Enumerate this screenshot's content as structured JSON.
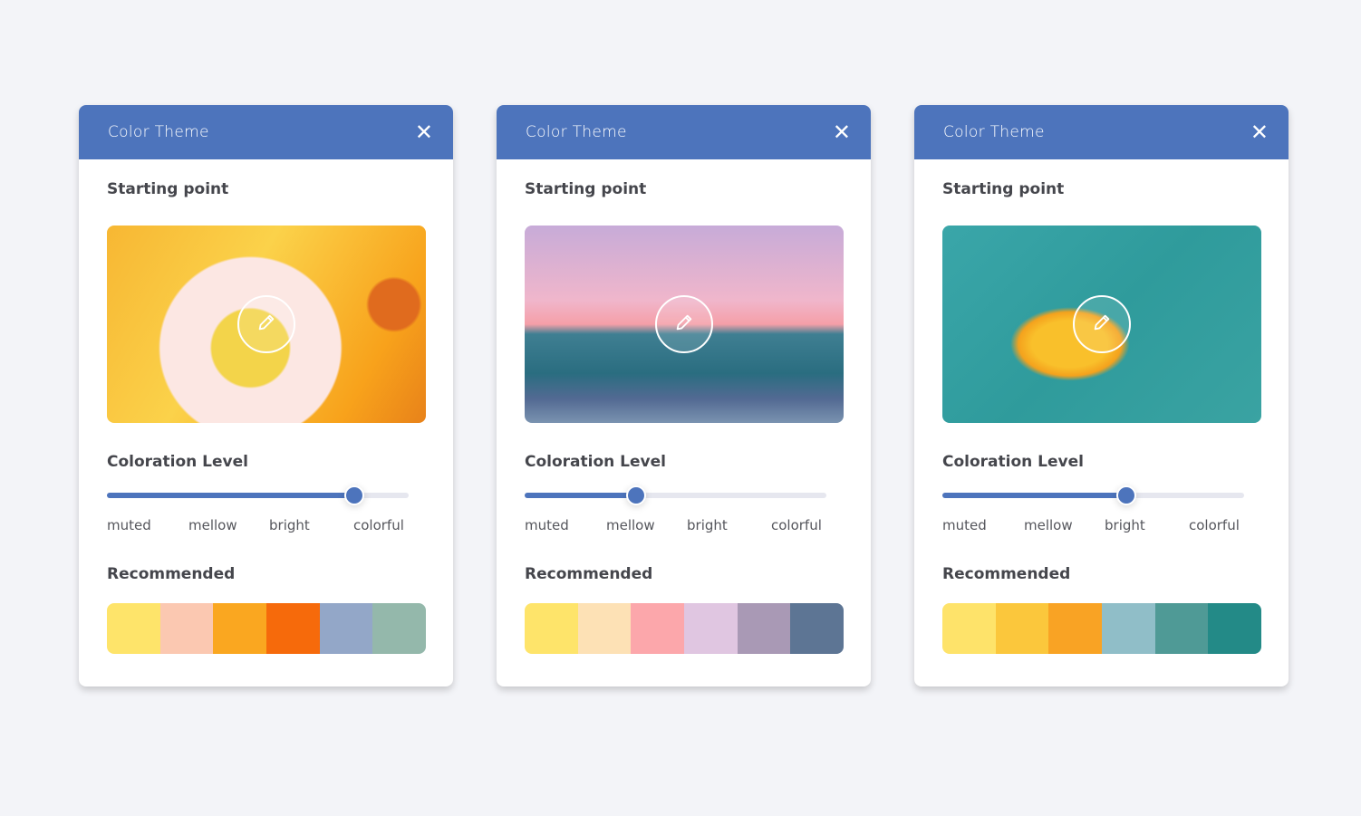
{
  "cards": [
    {
      "title": "Color Theme",
      "close_icon": "close-icon",
      "starting_label": "Starting point",
      "image": "donut-pool-float",
      "edit_icon": "pencil-icon",
      "coloration_label": "Coloration Level",
      "level_percent": 82,
      "levels": [
        "muted",
        "mellow",
        "bright",
        "colorful"
      ],
      "recommended_label": "Recommended",
      "palette": [
        "#FEE46A",
        "#FBC8B1",
        "#FAA720",
        "#F66A0B",
        "#93A7C8",
        "#94B8AB"
      ]
    },
    {
      "title": "Color Theme",
      "close_icon": "close-icon",
      "starting_label": "Starting point",
      "image": "ocean-sunset",
      "edit_icon": "pencil-icon",
      "coloration_label": "Coloration Level",
      "level_percent": 37,
      "levels": [
        "muted",
        "mellow",
        "bright",
        "colorful"
      ],
      "recommended_label": "Recommended",
      "palette": [
        "#FEE46A",
        "#FDE1B5",
        "#FCA7AB",
        "#E0C6E1",
        "#A999B5",
        "#5D7594"
      ]
    },
    {
      "title": "Color Theme",
      "close_icon": "close-icon",
      "starting_label": "Starting point",
      "image": "swimmer-on-float",
      "edit_icon": "pencil-icon",
      "coloration_label": "Coloration Level",
      "level_percent": 61,
      "levels": [
        "muted",
        "mellow",
        "bright",
        "colorful"
      ],
      "recommended_label": "Recommended",
      "palette": [
        "#FEE36A",
        "#FBC73C",
        "#F9A324",
        "#90BEC8",
        "#4F9A96",
        "#238A87"
      ]
    }
  ],
  "accent": "#4D74BC"
}
